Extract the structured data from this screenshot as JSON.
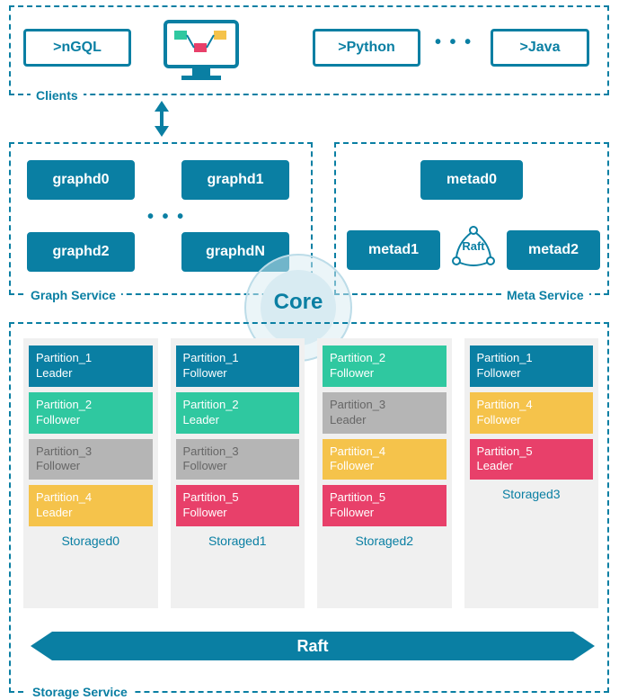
{
  "colors": {
    "teal": "#0a7fa3",
    "tealDark": "#0a6b8a",
    "mint": "#2fc8a0",
    "grey": "#b5b5b5",
    "yellow": "#f5c34b",
    "pink": "#e8406a",
    "lightGrey": "#f0f0f0",
    "coreFill": "#d8ebf2",
    "greyText": "#8a8a8a"
  },
  "clients": {
    "label": "Clients",
    "ngql": ">nGQL",
    "python": ">Python",
    "java": ">Java"
  },
  "graphService": {
    "label": "Graph Service",
    "nodes": [
      "graphd0",
      "graphd1",
      "graphd2",
      "graphdN"
    ]
  },
  "metaService": {
    "label": "Meta Service",
    "nodes": [
      "metad0",
      "metad1",
      "metad2"
    ],
    "raft": "Raft"
  },
  "coreLabel": "Core",
  "storageService": {
    "label": "Storage Service",
    "raftBar": "Raft",
    "columns": [
      {
        "name": "Storaged0",
        "parts": [
          {
            "t": "Partition_1 Leader",
            "c": "teal"
          },
          {
            "t": "Partition_2 Follower",
            "c": "mint"
          },
          {
            "t": "Partition_3 Follower",
            "c": "grey"
          },
          {
            "t": "Partition_4 Leader",
            "c": "yellow"
          }
        ]
      },
      {
        "name": "Storaged1",
        "parts": [
          {
            "t": "Partition_1 Follower",
            "c": "teal"
          },
          {
            "t": "Partition_2 Leader",
            "c": "mint"
          },
          {
            "t": "Partition_3 Follower",
            "c": "grey"
          },
          {
            "t": "Partition_5 Follower",
            "c": "pink"
          }
        ]
      },
      {
        "name": "Storaged2",
        "parts": [
          {
            "t": "Partition_2 Follower",
            "c": "mint"
          },
          {
            "t": "Partition_3 Leader",
            "c": "grey"
          },
          {
            "t": "Partition_4 Follower",
            "c": "yellow"
          },
          {
            "t": "Partition_5 Follower",
            "c": "pink"
          }
        ]
      },
      {
        "name": "Storaged3",
        "parts": [
          {
            "t": "Partition_1 Follower",
            "c": "teal"
          },
          {
            "t": "Partition_4 Follower",
            "c": "yellow"
          },
          {
            "t": "Partition_5 Leader",
            "c": "pink"
          }
        ]
      }
    ]
  }
}
